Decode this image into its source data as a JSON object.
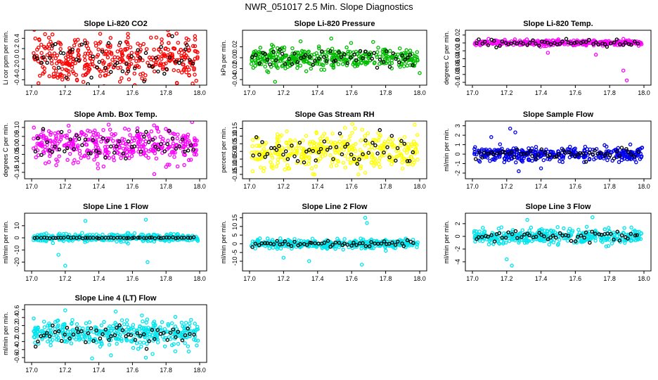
{
  "figure": {
    "title": "NWR_051017  2.5 Min. Slope Diagnostics"
  },
  "chart_data": [
    {
      "type": "scatter",
      "title": "Slope Li-820 CO2",
      "ylabel": "Li cor ppm per min.",
      "xlim": [
        17.0,
        18.0
      ],
      "ylim": [
        -0.45,
        0.5
      ],
      "xticks": [
        17.0,
        17.2,
        17.4,
        17.6,
        17.8,
        18.0
      ],
      "xtick_labels": [
        "17.0",
        "17.2",
        "17.4",
        "17.6",
        "17.8",
        "18.0"
      ],
      "yticks": [
        -0.4,
        -0.2,
        0.0,
        0.2,
        0.4
      ],
      "ytick_labels": [
        "-0.4",
        "-0.2",
        "0.0",
        "0.2",
        "0.4"
      ],
      "color": "#ff0000",
      "series_sample": [
        {
          "x": 17.02,
          "y": 0.12
        },
        {
          "x": 17.06,
          "y": -0.18
        },
        {
          "x": 17.1,
          "y": 0.35
        },
        {
          "x": 17.15,
          "y": -0.05
        },
        {
          "x": 17.22,
          "y": 0.28
        },
        {
          "x": 17.3,
          "y": -0.32
        },
        {
          "x": 17.38,
          "y": 0.08
        },
        {
          "x": 17.45,
          "y": 0.41
        },
        {
          "x": 17.52,
          "y": -0.22
        },
        {
          "x": 17.6,
          "y": 0.16
        },
        {
          "x": 17.68,
          "y": -0.1
        },
        {
          "x": 17.75,
          "y": 0.3
        },
        {
          "x": 17.82,
          "y": -0.26
        },
        {
          "x": 17.9,
          "y": 0.05
        },
        {
          "x": 17.97,
          "y": -0.38
        }
      ],
      "spread": 0.22,
      "outliers": [
        {
          "x": 17.08,
          "y": 0.48
        },
        {
          "x": 17.98,
          "y": -0.42
        },
        {
          "x": 17.27,
          "y": -0.4
        }
      ],
      "black_spread": 0.18
    },
    {
      "type": "scatter",
      "title": "Slope Li-820 Pressure",
      "ylabel": "kPa per min.",
      "xlim": [
        17.0,
        18.0
      ],
      "ylim": [
        -0.045,
        0.045
      ],
      "xticks": [
        17.0,
        17.2,
        17.4,
        17.6,
        17.8,
        18.0
      ],
      "xtick_labels": [
        "17.0",
        "17.2",
        "17.4",
        "17.6",
        "17.8",
        "18.0"
      ],
      "yticks": [
        -0.04,
        -0.02,
        0.0,
        0.02
      ],
      "ytick_labels": [
        "-0.04",
        "-0.02",
        "0.00",
        "0.02"
      ],
      "color": "#00bb00",
      "spread": 0.009,
      "outliers": [
        {
          "x": 17.15,
          "y": -0.044
        },
        {
          "x": 17.3,
          "y": 0.03
        },
        {
          "x": 17.48,
          "y": 0.035
        },
        {
          "x": 18.0,
          "y": -0.028
        }
      ],
      "black_spread": 0.008
    },
    {
      "type": "scatter",
      "title": "Slope Li-820 Temp.",
      "ylabel": "degrees C per min.",
      "xlim": [
        17.0,
        18.0
      ],
      "ylim": [
        -0.1,
        0.025
      ],
      "xticks": [
        17.0,
        17.2,
        17.4,
        17.6,
        17.8,
        18.0
      ],
      "xtick_labels": [
        "17.0",
        "17.2",
        "17.4",
        "17.6",
        "17.8",
        "18.0"
      ],
      "yticks": [
        -0.1,
        -0.08,
        -0.06,
        -0.04,
        -0.02,
        0.0,
        0.02
      ],
      "ytick_labels": [
        "-0.1",
        "-0.08",
        "-0.06",
        "-0.04",
        "-0.02",
        "0.0",
        "0.02"
      ],
      "color": "#ff00ff",
      "spread": 0.003,
      "outliers": [
        {
          "x": 17.72,
          "y": -0.03
        },
        {
          "x": 17.88,
          "y": -0.07
        },
        {
          "x": 17.9,
          "y": -0.095
        },
        {
          "x": 17.44,
          "y": -0.025
        }
      ],
      "black_spread": 0.004
    },
    {
      "type": "scatter",
      "title": "Slope Amb. Box Temp.",
      "ylabel": "degrees C per min.",
      "xlim": [
        17.0,
        18.0
      ],
      "ylim": [
        -0.17,
        0.12
      ],
      "xticks": [
        17.0,
        17.2,
        17.4,
        17.6,
        17.8,
        18.0
      ],
      "xtick_labels": [
        "17.0",
        "17.2",
        "17.4",
        "17.6",
        "17.8",
        "18.0"
      ],
      "yticks": [
        -0.15,
        -0.1,
        -0.05,
        0.0,
        0.05,
        0.1
      ],
      "ytick_labels": [
        "-0.15",
        "-0.10",
        "-0.05",
        "0.00",
        "0.05",
        "0.10"
      ],
      "color": "#ff00ff",
      "spread": 0.045,
      "outliers": [
        {
          "x": 17.22,
          "y": 0.11
        },
        {
          "x": 17.73,
          "y": -0.16
        },
        {
          "x": 17.8,
          "y": -0.12
        }
      ],
      "black_spread": 0.04
    },
    {
      "type": "scatter",
      "title": "Slope Gas Stream RH",
      "ylabel": "percent per min.",
      "xlim": [
        17.0,
        18.0
      ],
      "ylim": [
        -0.16,
        0.18
      ],
      "xticks": [
        17.0,
        17.2,
        17.4,
        17.6,
        17.8,
        18.0
      ],
      "xtick_labels": [
        "17.0",
        "17.2",
        "17.4",
        "17.6",
        "17.8",
        "18.0"
      ],
      "yticks": [
        -0.15,
        -0.1,
        -0.05,
        0.0,
        0.05,
        0.1,
        0.15
      ],
      "ytick_labels": [
        "-0.15",
        "-0.10",
        "-0.05",
        "0.00",
        "0.05",
        "0.10",
        "0.15"
      ],
      "color": "#ffff00",
      "spread": 0.06,
      "outliers": [
        {
          "x": 17.62,
          "y": 0.15
        },
        {
          "x": 17.64,
          "y": -0.15
        },
        {
          "x": 17.68,
          "y": -0.14
        }
      ],
      "black_spread": 0.05
    },
    {
      "type": "scatter",
      "title": "Slope Sample Flow",
      "ylabel": "ml/min per min.",
      "xlim": [
        17.0,
        18.0
      ],
      "ylim": [
        -2.3,
        3.2
      ],
      "xticks": [
        17.0,
        17.2,
        17.4,
        17.6,
        17.8,
        18.0
      ],
      "xtick_labels": [
        "17.0",
        "17.2",
        "17.4",
        "17.6",
        "17.8",
        "18.0"
      ],
      "yticks": [
        -2,
        -1,
        0,
        1,
        2,
        3
      ],
      "ytick_labels": [
        "-2",
        "-1",
        "0",
        "1",
        "2",
        "3"
      ],
      "color": "#0000ee",
      "spread": 0.35,
      "outliers": [
        {
          "x": 17.22,
          "y": 2.7
        },
        {
          "x": 17.25,
          "y": 2.3
        },
        {
          "x": 17.27,
          "y": -1.8
        },
        {
          "x": 17.11,
          "y": 1.8
        },
        {
          "x": 17.4,
          "y": -1.5
        }
      ],
      "black_spread": 0.3
    },
    {
      "type": "scatter",
      "title": "Slope Line 1 Flow",
      "ylabel": "ml/min per min.",
      "xlim": [
        17.0,
        18.0
      ],
      "ylim": [
        -25,
        18
      ],
      "xticks": [
        17.0,
        17.2,
        17.4,
        17.6,
        17.8,
        18.0
      ],
      "xtick_labels": [
        "17.0",
        "17.2",
        "17.4",
        "17.6",
        "17.8",
        "18.0"
      ],
      "yticks": [
        -20,
        -10,
        0,
        10
      ],
      "ytick_labels": [
        "-20",
        "-10",
        "0",
        "10"
      ],
      "color": "#00e5ee",
      "spread": 1.5,
      "outliers": [
        {
          "x": 17.2,
          "y": -23
        },
        {
          "x": 17.32,
          "y": 14
        },
        {
          "x": 17.68,
          "y": 15
        },
        {
          "x": 17.69,
          "y": -20
        },
        {
          "x": 17.16,
          "y": -14
        }
      ],
      "black_spread": 0.2
    },
    {
      "type": "scatter",
      "title": "Slope Line 2 Flow",
      "ylabel": "ml/min per min.",
      "xlim": [
        17.0,
        18.0
      ],
      "ylim": [
        -14,
        16
      ],
      "xticks": [
        17.0,
        17.2,
        17.4,
        17.6,
        17.8,
        18.0
      ],
      "xtick_labels": [
        "17.0",
        "17.2",
        "17.4",
        "17.6",
        "17.8",
        "18.0"
      ],
      "yticks": [
        -10,
        -5,
        0,
        5,
        10,
        15
      ],
      "ytick_labels": [
        "-10",
        "-5",
        "0",
        "5",
        "10",
        "15"
      ],
      "color": "#00e5ee",
      "spread": 1.2,
      "outliers": [
        {
          "x": 17.68,
          "y": 15
        },
        {
          "x": 17.69,
          "y": 12
        },
        {
          "x": 17.66,
          "y": -12
        },
        {
          "x": 17.35,
          "y": -10
        },
        {
          "x": 17.2,
          "y": -8
        }
      ],
      "black_spread": 0.8
    },
    {
      "type": "scatter",
      "title": "Slope Line 3 Flow",
      "ylabel": "ml/min per min.",
      "xlim": [
        17.0,
        18.0
      ],
      "ylim": [
        -5,
        3.2
      ],
      "xticks": [
        17.0,
        17.2,
        17.4,
        17.6,
        17.8,
        18.0
      ],
      "xtick_labels": [
        "17.0",
        "17.2",
        "17.4",
        "17.6",
        "17.8",
        "18.0"
      ],
      "yticks": [
        -4,
        -2,
        0,
        2
      ],
      "ytick_labels": [
        "-4",
        "-2",
        "0",
        "2"
      ],
      "color": "#00e5ee",
      "spread": 0.6,
      "outliers": [
        {
          "x": 17.23,
          "y": -4.6
        },
        {
          "x": 17.2,
          "y": -3.6
        },
        {
          "x": 17.7,
          "y": 3.0
        },
        {
          "x": 17.32,
          "y": 2.6
        }
      ],
      "black_spread": 0.4
    },
    {
      "type": "scatter",
      "title": "Slope Line 4 (LT) Flow",
      "ylabel": "ml/min per min.",
      "xlim": [
        17.0,
        18.0
      ],
      "ylim": [
        -0.65,
        0.65
      ],
      "xticks": [
        17.0,
        17.2,
        17.4,
        17.6,
        17.8,
        18.0
      ],
      "xtick_labels": [
        "17.0",
        "17.2",
        "17.4",
        "17.6",
        "17.8",
        "18.0"
      ],
      "yticks": [
        -0.6,
        -0.4,
        -0.2,
        0.0,
        0.2,
        0.4,
        0.6
      ],
      "ytick_labels": [
        "-0.6",
        "-0.4",
        "-0.2",
        "0.0",
        "0.2",
        "0.4",
        "0.6"
      ],
      "color": "#00e5ee",
      "spread": 0.15,
      "outliers": [
        {
          "x": 17.36,
          "y": -0.62
        },
        {
          "x": 17.68,
          "y": -0.6
        },
        {
          "x": 17.2,
          "y": 0.58
        },
        {
          "x": 17.5,
          "y": 0.55
        }
      ],
      "black_spread": 0.12
    }
  ]
}
